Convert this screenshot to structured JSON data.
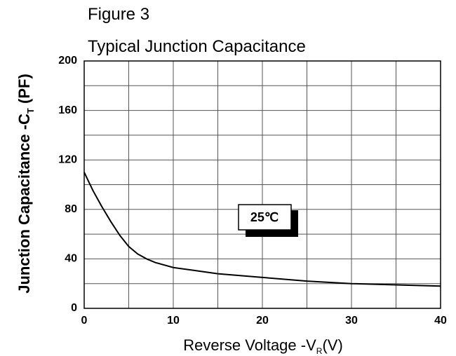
{
  "chart_data": {
    "type": "line",
    "title": "Figure 3",
    "subtitle": "Typical Junction Capacitance",
    "xlabel": [
      "Reverse Voltage -V",
      "R",
      "(V)"
    ],
    "ylabel": [
      "Junction Capacitance -C",
      "T",
      " (PF)"
    ],
    "annotation": "25℃",
    "x": [
      0,
      1,
      2,
      3,
      4,
      5,
      6,
      7,
      8,
      10,
      12,
      15,
      20,
      25,
      30,
      35,
      40
    ],
    "series": [
      {
        "color": "#000000",
        "values": [
          110,
          95,
          82,
          70,
          59,
          50,
          44,
          40,
          37,
          33,
          31,
          28,
          25,
          22,
          20,
          19,
          18
        ]
      }
    ],
    "xlim": [
      0,
      40
    ],
    "xticks": [
      0,
      10,
      20,
      30,
      40
    ],
    "xminor": [
      5,
      15,
      25,
      35
    ],
    "ylim": [
      0,
      200
    ],
    "yticks": [
      0,
      40,
      80,
      120,
      160,
      200
    ],
    "yminor": [
      20,
      60,
      100,
      140,
      180
    ],
    "grid": true
  }
}
